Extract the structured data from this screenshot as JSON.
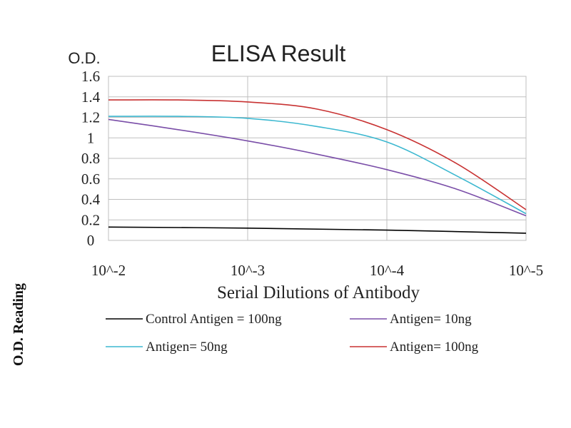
{
  "chart_data": {
    "type": "line",
    "title": "ELISA Result",
    "y_unit_label": "O.D.",
    "side_label": "O.D. Reading",
    "xlabel": "Serial Dilutions of Antibody",
    "x_ticks": [
      "10^-2",
      "10^-3",
      "10^-4",
      "10^-5"
    ],
    "y_ticks": [
      "1.6",
      "1.4",
      "1.2",
      "1",
      "0.8",
      "0.6",
      "0.4",
      "0.2",
      "0"
    ],
    "ylim": [
      0,
      1.6
    ],
    "x_scale": "log",
    "grid": {
      "x": true,
      "y": true
    },
    "legend_position": "bottom",
    "series": [
      {
        "name": "Control Antigen = 100ng",
        "color": "#000000",
        "points": [
          [
            0.01,
            0.13
          ],
          [
            0.001,
            0.12
          ],
          [
            0.0001,
            0.1
          ],
          [
            1e-05,
            0.07
          ]
        ]
      },
      {
        "name": "Antigen= 10ng",
        "color": "#7a4ea8",
        "points": [
          [
            0.01,
            1.18
          ],
          [
            0.00316,
            1.08
          ],
          [
            0.001,
            0.97
          ],
          [
            0.000316,
            0.84
          ],
          [
            0.0001,
            0.69
          ],
          [
            3.16e-05,
            0.5
          ],
          [
            1e-05,
            0.24
          ]
        ]
      },
      {
        "name": "Antigen= 50ng",
        "color": "#3cb8d0",
        "points": [
          [
            0.01,
            1.21
          ],
          [
            0.00316,
            1.21
          ],
          [
            0.001,
            1.19
          ],
          [
            0.000316,
            1.11
          ],
          [
            0.0001,
            0.96
          ],
          [
            3.16e-05,
            0.63
          ],
          [
            1e-05,
            0.26
          ]
        ]
      },
      {
        "name": "Antigen= 100ng",
        "color": "#c83232",
        "points": [
          [
            0.01,
            1.37
          ],
          [
            0.00316,
            1.37
          ],
          [
            0.001,
            1.35
          ],
          [
            0.000316,
            1.28
          ],
          [
            0.0001,
            1.08
          ],
          [
            3.16e-05,
            0.75
          ],
          [
            1e-05,
            0.3
          ]
        ]
      }
    ]
  }
}
